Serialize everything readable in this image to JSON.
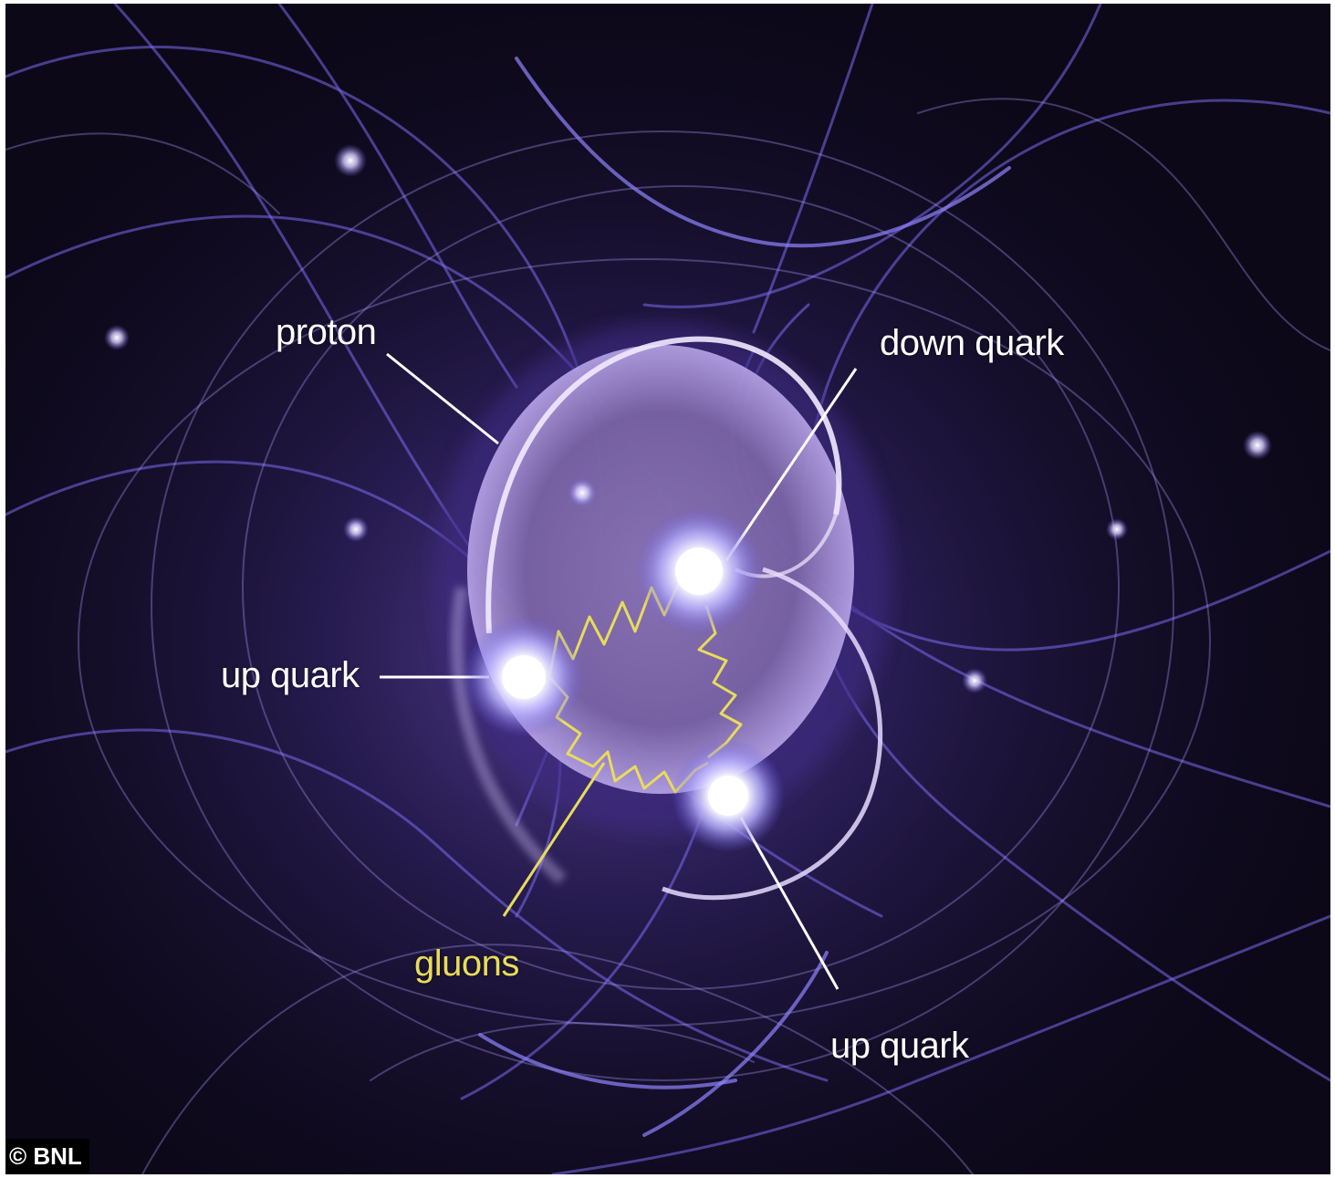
{
  "diagram": {
    "labels": {
      "proton": "proton",
      "down_quark": "down quark",
      "up_quark_left": "up quark",
      "up_quark_bottom": "up quark",
      "gluons": "gluons"
    },
    "credit": "© BNL",
    "colors": {
      "background": "#0c0818",
      "field_lines": "#7a6cf0",
      "proton_disc": "#7f6aa8",
      "quark_glow": "#ffffff",
      "gluon": "#e8dc5a",
      "label_text": "#ffffff"
    }
  }
}
